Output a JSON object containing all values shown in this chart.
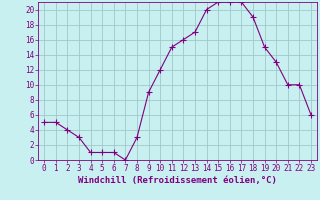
{
  "x": [
    0,
    1,
    2,
    3,
    4,
    5,
    6,
    7,
    8,
    9,
    10,
    11,
    12,
    13,
    14,
    15,
    16,
    17,
    18,
    19,
    20,
    21,
    22,
    23
  ],
  "y": [
    5,
    5,
    4,
    3,
    1,
    1,
    1,
    0,
    3,
    9,
    12,
    15,
    16,
    17,
    20,
    21,
    21,
    21,
    19,
    15,
    13,
    10,
    10,
    6
  ],
  "line_color": "#800080",
  "marker": "+",
  "marker_size": 4,
  "bg_color": "#c8f0f0",
  "grid_color": "#a0c8c8",
  "xlabel": "Windchill (Refroidissement éolien,°C)",
  "xlim": [
    -0.5,
    23.5
  ],
  "ylim": [
    0,
    21
  ],
  "xtick_labels": [
    "0",
    "1",
    "2",
    "3",
    "4",
    "5",
    "6",
    "7",
    "8",
    "9",
    "10",
    "11",
    "12",
    "13",
    "14",
    "15",
    "16",
    "17",
    "18",
    "19",
    "20",
    "21",
    "22",
    "23"
  ],
  "ytick_vals": [
    0,
    2,
    4,
    6,
    8,
    10,
    12,
    14,
    16,
    18,
    20
  ],
  "xlabel_fontsize": 6.5,
  "tick_fontsize": 5.5
}
